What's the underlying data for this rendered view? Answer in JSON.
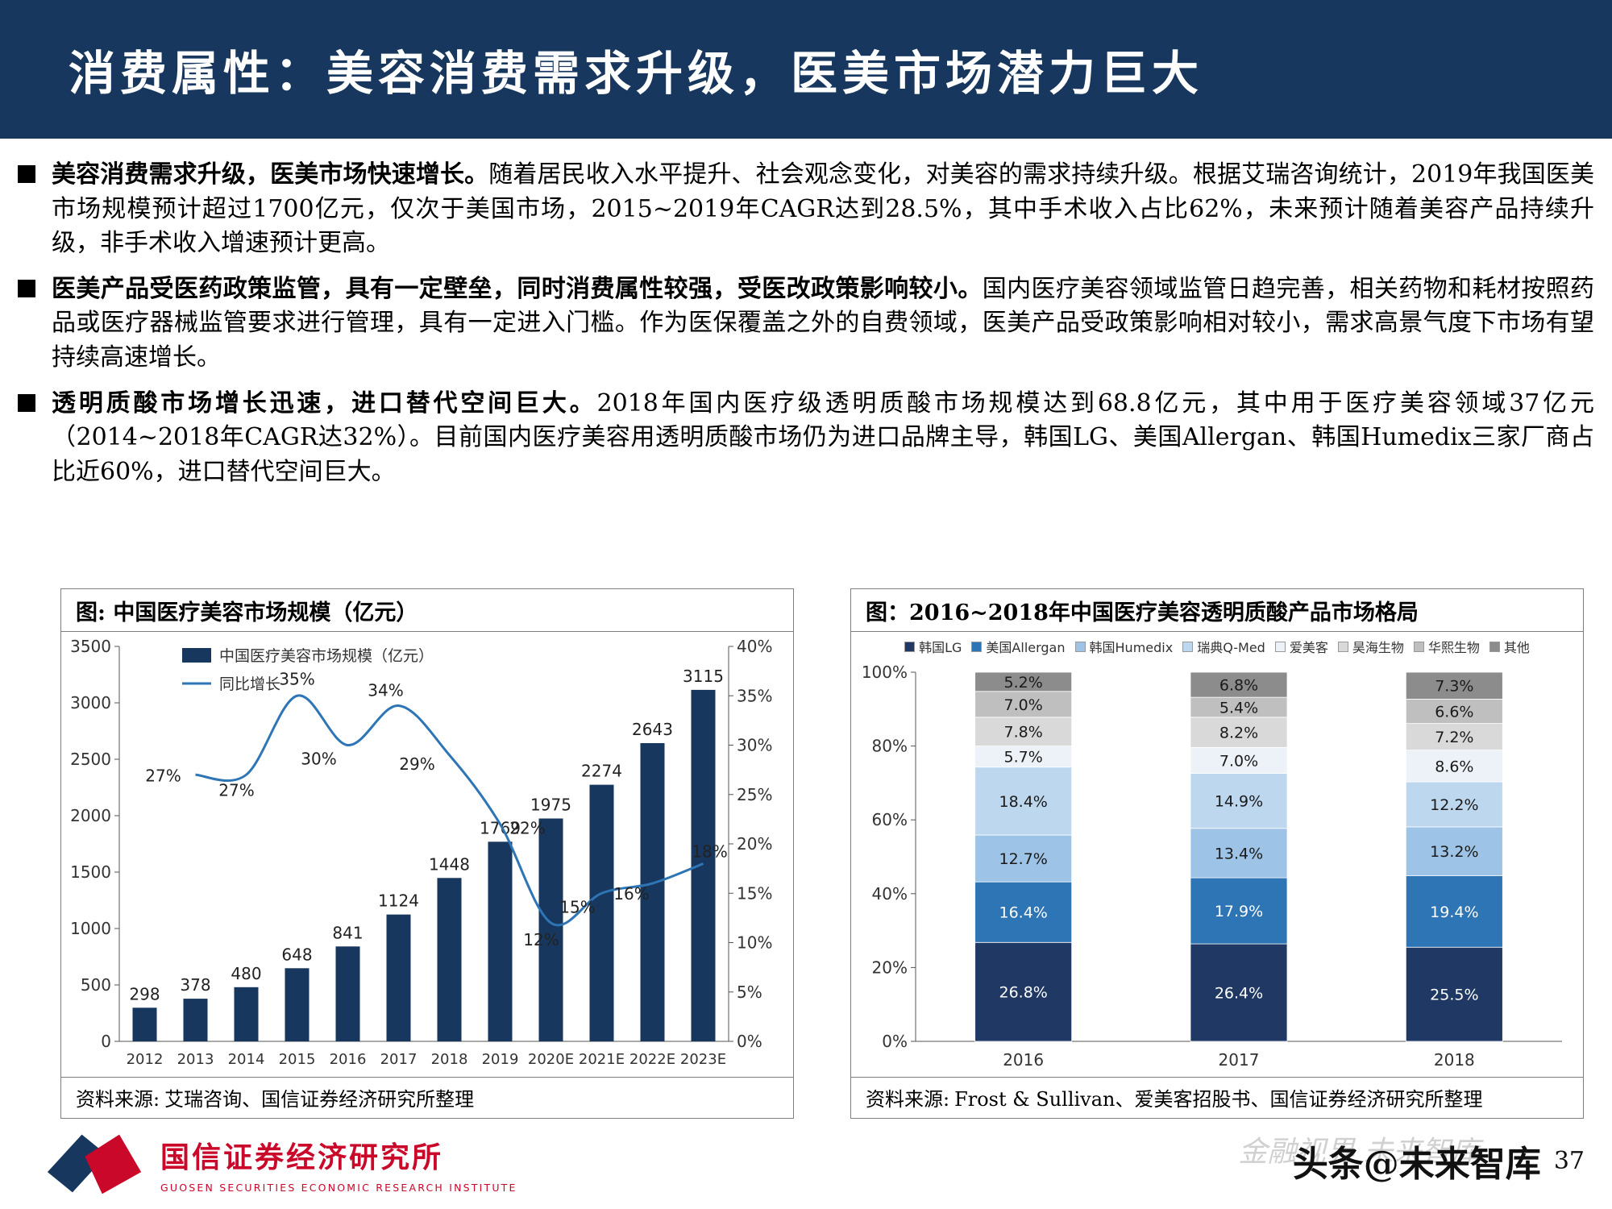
{
  "header": {
    "title": "消费属性：美容消费需求升级，医美市场潜力巨大"
  },
  "bullets": [
    {
      "lead": "美容消费需求升级，医美市场快速增长。",
      "body": "随着居民收入水平提升、社会观念变化，对美容的需求持续升级。根据艾瑞咨询统计，2019年我国医美市场规模预计超过1700亿元，仅次于美国市场，2015~2019年CAGR达到28.5%，其中手术收入占比62%，未来预计随着美容产品持续升级，非手术收入增速预计更高。"
    },
    {
      "lead": "医美产品受医药政策监管，具有一定壁垒，同时消费属性较强，受医改政策影响较小。",
      "body": "国内医疗美容领域监管日趋完善，相关药物和耗材按照药品或医疗器械监管要求进行管理，具有一定进入门槛。作为医保覆盖之外的自费领域，医美产品受政策影响相对较小，需求高景气度下市场有望持续高速增长。"
    },
    {
      "lead": "透明质酸市场增长迅速，进口替代空间巨大。",
      "body": "2018年国内医疗级透明质酸市场规模达到68.8亿元，其中用于医疗美容领域37亿元（2014~2018年CAGR达32%）。目前国内医疗美容用透明质酸市场仍为进口品牌主导，韩国LG、美国Allergan、韩国Humedix三家厂商占比近60%，进口替代空间巨大。"
    }
  ],
  "left_chart": {
    "title": "图: 中国医疗美容市场规模（亿元）",
    "source_label": "资料来源:",
    "source_text": "艾瑞咨询、国信证券经济研究所整理"
  },
  "right_chart": {
    "title": "图：2016~2018年中国医疗美容透明质酸产品市场格局",
    "source_label": "资料来源:",
    "source_text": "Frost & Sullivan、爱美客招股书、国信证券经济研究所整理"
  },
  "chart_data": [
    {
      "type": "bar",
      "subtype": "bar+line dual axis",
      "title": "中国医疗美容市场规模（亿元）",
      "categories": [
        "2012",
        "2013",
        "2014",
        "2015",
        "2016",
        "2017",
        "2018",
        "2019",
        "2020E",
        "2021E",
        "2022E",
        "2023E"
      ],
      "bar_series": {
        "name": "中国医疗美容市场规模（亿元）",
        "values": [
          298,
          378,
          480,
          648,
          841,
          1124,
          1448,
          1769,
          1975,
          2274,
          2643,
          3115
        ],
        "color": "#17375E"
      },
      "line_series": {
        "name": "同比增长",
        "values": [
          null,
          27,
          27,
          35,
          30,
          34,
          29,
          22,
          12,
          15,
          16,
          18
        ],
        "unit": "%",
        "color": "#2E75B6"
      },
      "y_left": {
        "min": 0,
        "max": 3500,
        "step": 500
      },
      "y_right": {
        "min": 0,
        "max": 40,
        "step": 5,
        "unit": "%"
      },
      "legend_position": "top-left inside",
      "grid": false
    },
    {
      "type": "bar",
      "subtype": "100% stacked",
      "title": "2016~2018年中国医疗美容透明质酸产品市场格局",
      "categories": [
        "2016",
        "2017",
        "2018"
      ],
      "series": [
        {
          "name": "韩国LG",
          "values": [
            26.8,
            26.4,
            25.5
          ],
          "color": "#1F3864",
          "label_color": "#FFFFFF"
        },
        {
          "name": "美国Allergan",
          "values": [
            16.4,
            17.9,
            19.4
          ],
          "color": "#2E75B6",
          "label_color": "#FFFFFF"
        },
        {
          "name": "韩国Humedix",
          "values": [
            12.7,
            13.4,
            13.2
          ],
          "color": "#9DC3E6",
          "label_color": "#1A1A1A"
        },
        {
          "name": "瑞典Q-Med",
          "values": [
            18.4,
            14.9,
            12.2
          ],
          "color": "#BDD7EE",
          "label_color": "#1A1A1A"
        },
        {
          "name": "爱美客",
          "values": [
            5.7,
            7.0,
            8.6
          ],
          "color": "#EDF2F8",
          "label_color": "#1A1A1A"
        },
        {
          "name": "昊海生物",
          "values": [
            7.8,
            8.2,
            7.2
          ],
          "color": "#D9D9D9",
          "label_color": "#1A1A1A"
        },
        {
          "name": "华熙生物",
          "values": [
            7.0,
            5.4,
            6.6
          ],
          "color": "#BFBFBF",
          "label_color": "#1A1A1A"
        },
        {
          "name": "其他",
          "values": [
            5.2,
            6.8,
            7.3
          ],
          "color": "#8C8C8C",
          "label_color": "#1A1A1A"
        }
      ],
      "y_axis": {
        "min": 0,
        "max": 100,
        "step": 20,
        "unit": "%"
      },
      "legend_position": "top row",
      "grid": false
    }
  ],
  "footer": {
    "logo_title": "国信证券经济研究所",
    "logo_subtitle": "GUOSEN SECURITIES ECONOMIC RESEARCH INSTITUTE",
    "watermark": "头条@未来智库",
    "watermark_faint": "金融视界 未来智库",
    "page_number": "37"
  },
  "colors": {
    "header_bg": "#17375E",
    "bar_navy": "#17375E",
    "line_blue": "#2E75B6",
    "logo_red": "#C9082A"
  }
}
